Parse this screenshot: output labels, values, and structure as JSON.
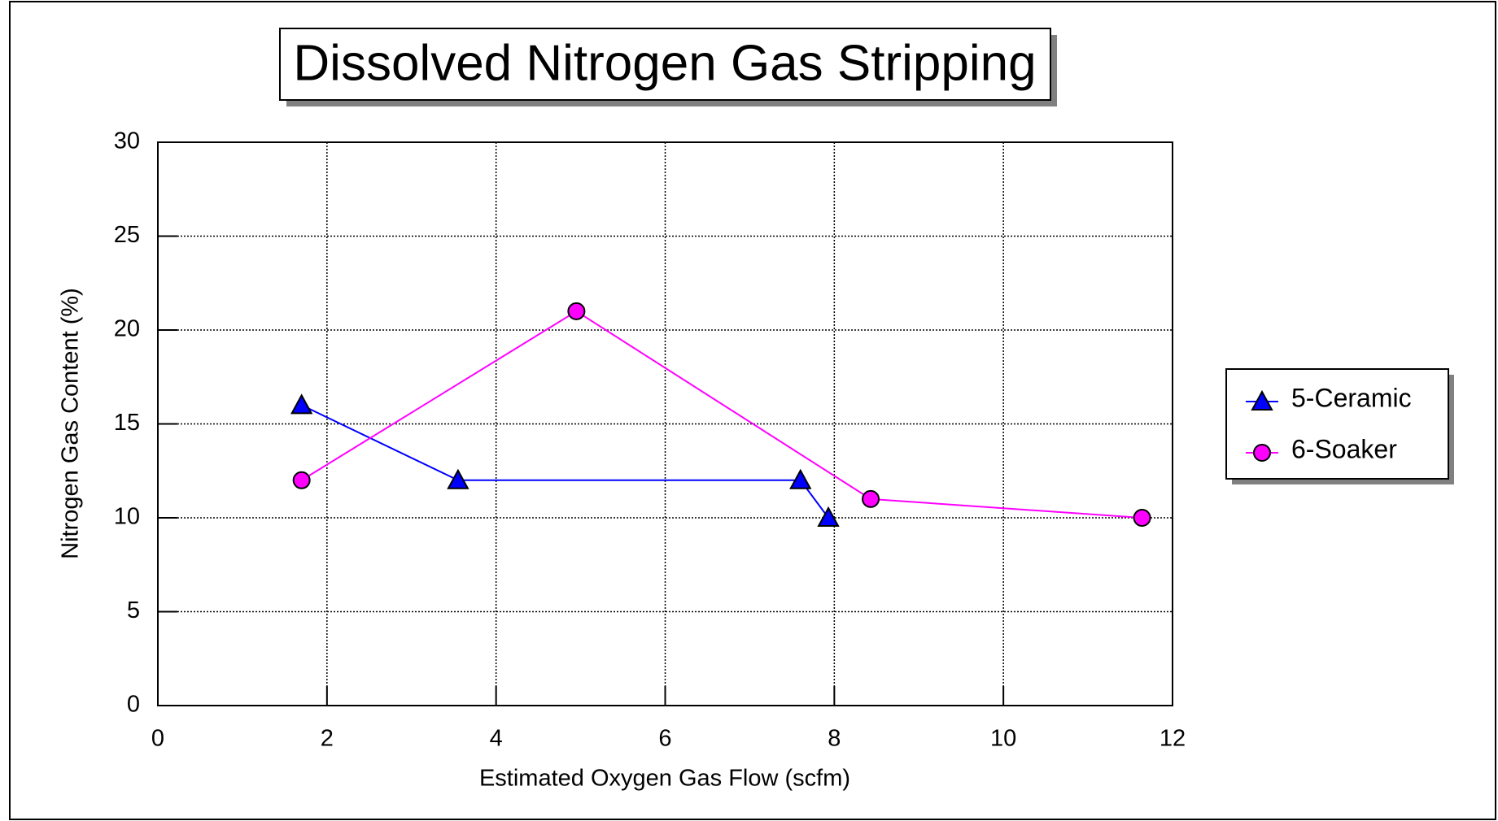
{
  "chart_data": {
    "type": "line",
    "title": "Dissolved Nitrogen Gas Stripping",
    "xlabel": "Estimated Oxygen Gas Flow (scfm)",
    "ylabel": "Nitrogen Gas Content (%)",
    "xlim": [
      0,
      12
    ],
    "xticks": [
      0,
      2,
      4,
      6,
      8,
      10,
      12
    ],
    "ylim": [
      0,
      30
    ],
    "yticks": [
      0,
      5,
      10,
      15,
      20,
      25,
      30
    ],
    "grid": true,
    "legend": "right",
    "series": [
      {
        "name": "5-Ceramic",
        "color": "#0000ff",
        "marker": "triangle",
        "x": [
          1.7,
          3.55,
          7.6,
          7.93
        ],
        "values": [
          16,
          12,
          12,
          10
        ]
      },
      {
        "name": "6-Soaker",
        "color": "#ff00ff",
        "marker": "circle",
        "x": [
          1.7,
          4.95,
          8.43,
          11.64
        ],
        "values": [
          12,
          21,
          11,
          10
        ]
      }
    ]
  }
}
